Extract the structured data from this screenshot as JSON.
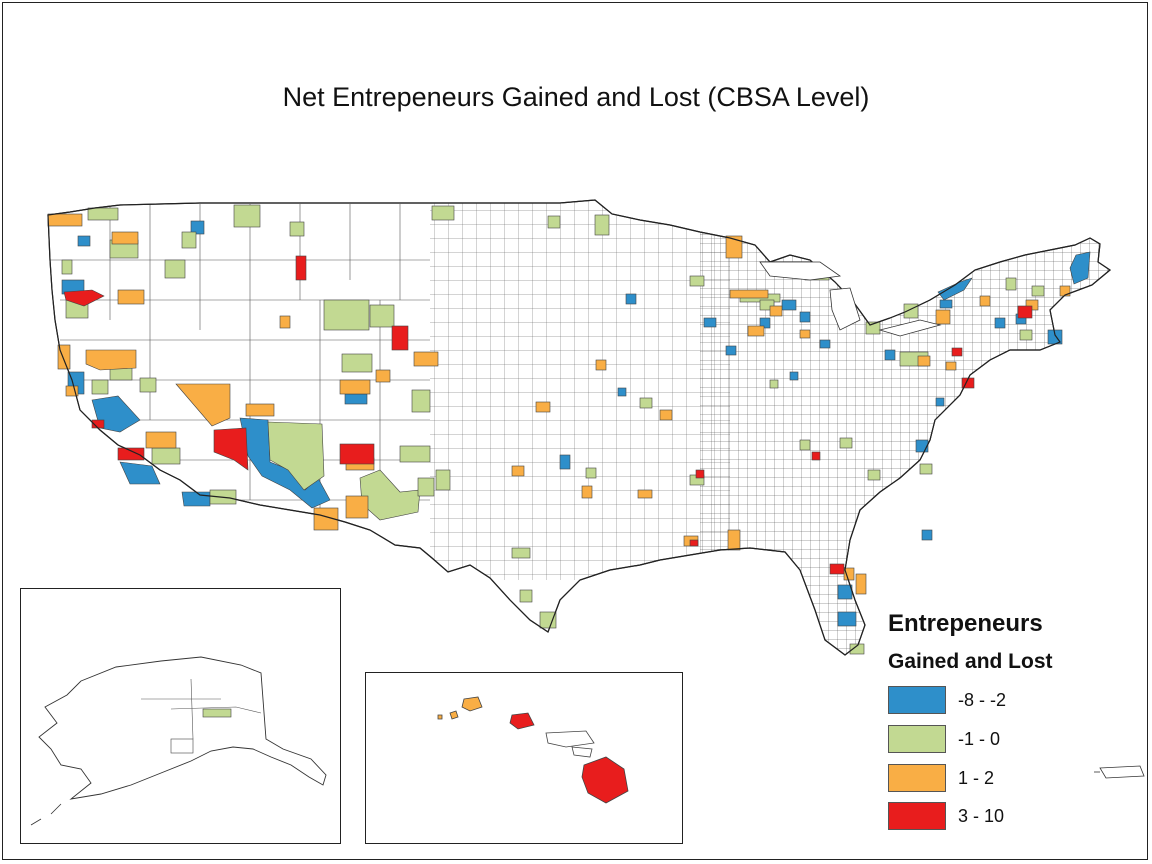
{
  "map": {
    "title": "Net Entrepeneurs Gained and Lost (CBSA Level)"
  },
  "legend": {
    "title_line1": "Entrepeneurs",
    "title_line2": "Gained and Lost",
    "items": [
      {
        "label": "-8 - -2",
        "color": "#2E8FCA"
      },
      {
        "label": "-1 - 0",
        "color": "#C2D992"
      },
      {
        "label": "1 - 2",
        "color": "#F9AE45"
      },
      {
        "label": "3 - 10",
        "color": "#E81D1D"
      }
    ]
  },
  "colors": {
    "boundary": "#444444",
    "background": "#FFFFFF",
    "outline": "#222222"
  }
}
